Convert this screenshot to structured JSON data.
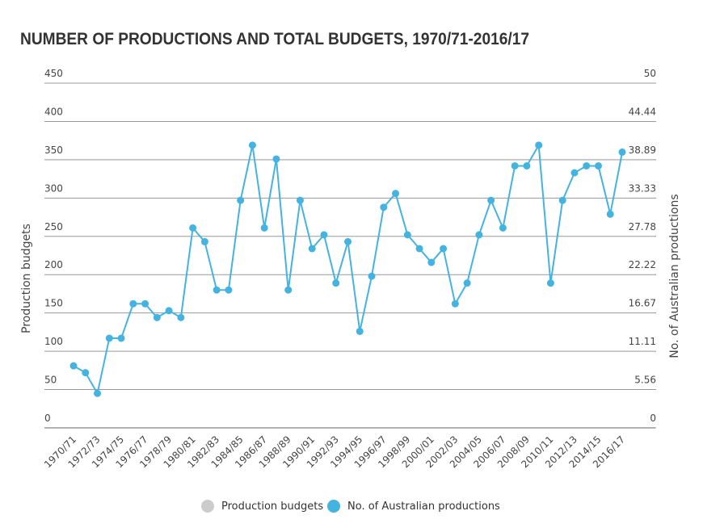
{
  "chart_data": {
    "type": "line",
    "title": "NUMBER OF PRODUCTIONS AND TOTAL BUDGETS, 1970/71-2016/17",
    "y_label": "Production budgets",
    "y2_label": "No. of Australian productions",
    "categories": [
      "1970/71",
      null,
      "1972/73",
      null,
      "1974/75",
      null,
      "1976/77",
      null,
      "1978/79",
      null,
      "1980/81",
      null,
      "1982/83",
      null,
      "1984/85",
      null,
      "1986/87",
      null,
      "1988/89",
      null,
      "1990/91",
      null,
      "1992/93",
      null,
      "1994/95",
      null,
      "1996/97",
      null,
      "1998/99",
      null,
      "2000/01",
      null,
      "2002/03",
      null,
      "2004/05",
      null,
      "2006/07",
      null,
      "2008/09",
      null,
      "2010/11",
      null,
      "2012/13",
      null,
      "2014/15",
      null,
      "2016/17"
    ],
    "series": [
      {
        "name": "Production budgets",
        "color": "#cccccc",
        "values": [
          null,
          null,
          null,
          null,
          null,
          null,
          null,
          null,
          null,
          null,
          null,
          null,
          null,
          null,
          null,
          null,
          null,
          null,
          null,
          null,
          null,
          null,
          null,
          null,
          null,
          null,
          null,
          null,
          null,
          null,
          null,
          null,
          null,
          null,
          null,
          null,
          null,
          null,
          null,
          null,
          null,
          null,
          null,
          null,
          null,
          null,
          null
        ]
      },
      {
        "name": "No. of Australian productions",
        "color": "#45b3e0",
        "axis": "y2",
        "values": [
          9,
          8,
          5,
          13,
          13,
          18,
          18,
          16,
          17,
          16,
          29,
          27,
          20,
          20,
          33,
          41,
          29,
          39,
          20,
          33,
          26,
          28,
          21,
          27,
          14,
          22,
          32,
          34,
          28,
          26,
          24,
          26,
          18,
          21,
          28,
          33,
          29,
          38,
          38,
          41,
          21,
          33,
          37,
          38,
          38,
          31,
          40
        ]
      }
    ],
    "ylim": [
      0,
      450
    ],
    "yticks": [
      0,
      50,
      100,
      150,
      200,
      250,
      300,
      350,
      400,
      450
    ],
    "y2lim": [
      0,
      50
    ],
    "y2ticks": [
      0,
      5.56,
      11.11,
      16.67,
      22.22,
      27.78,
      33.33,
      38.89,
      44.44,
      50
    ],
    "grid": true,
    "legend": "bottom"
  }
}
